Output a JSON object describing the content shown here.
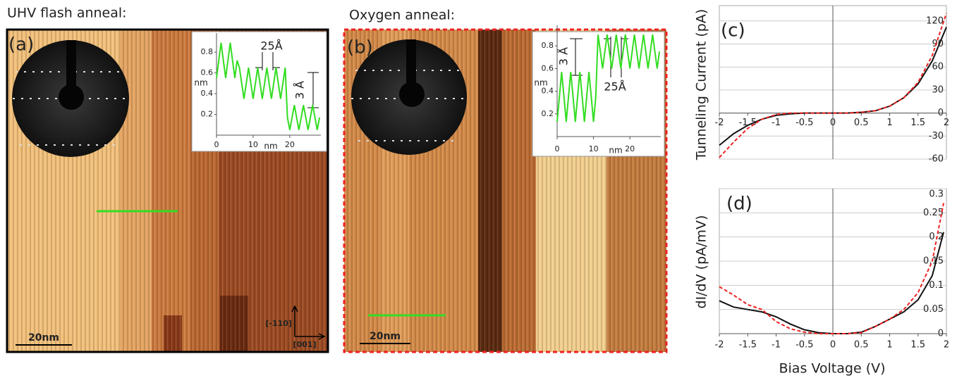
{
  "panels": [
    {
      "title": "UHV flash anneal:",
      "label": "(a)",
      "scale_bar": "20nm",
      "directions": [
        "[-110]",
        "[001]"
      ]
    },
    {
      "title": "Oxygen anneal:",
      "label": "(b)",
      "scale_bar": "20nm"
    }
  ],
  "chart_data": [
    {
      "type": "line",
      "xlabel": "nm",
      "ylabel": "nm",
      "annotations": [
        "25Å",
        "3 Å"
      ],
      "color": "#33dd22",
      "xlim": [
        0,
        28.5
      ],
      "ylim": [
        0,
        0.95
      ],
      "xticks": [
        0,
        10,
        20
      ],
      "yticks": [
        0.2,
        0.4,
        0.6,
        0.8
      ],
      "x": [
        0,
        0.625,
        1.25,
        1.875,
        2.5,
        3.125,
        3.75,
        4.375,
        5,
        5.625,
        6.25,
        6.875,
        7.5,
        8.125,
        8.75,
        9.375,
        10,
        10.625,
        11.25,
        11.875,
        12.5,
        13.125,
        13.75,
        14.375,
        15,
        15.625,
        16.25,
        16.875,
        17.5,
        18.125,
        18.75,
        19.375,
        20,
        20.625,
        21.25,
        21.875,
        22.5,
        23.125,
        23.75,
        24.375,
        25,
        25.625,
        26.25,
        26.875,
        27.5,
        28.125
      ],
      "values": [
        0.55,
        0.72,
        0.89,
        0.72,
        0.55,
        0.72,
        0.89,
        0.72,
        0.55,
        0.72,
        0.65,
        0.5,
        0.35,
        0.5,
        0.65,
        0.5,
        0.35,
        0.5,
        0.65,
        0.5,
        0.35,
        0.5,
        0.65,
        0.5,
        0.35,
        0.5,
        0.65,
        0.5,
        0.35,
        0.5,
        0.65,
        0.17,
        0.05,
        0.17,
        0.29,
        0.17,
        0.05,
        0.17,
        0.29,
        0.17,
        0.05,
        0.17,
        0.29,
        0.17,
        0.05,
        0.17
      ]
    },
    {
      "type": "line",
      "xlabel": "nm",
      "ylabel": "nm",
      "annotations": [
        "3 Å",
        "25Å"
      ],
      "color": "#33dd22",
      "xlim": [
        0,
        28.5
      ],
      "ylim": [
        0,
        0.95
      ],
      "xticks": [
        0,
        10,
        20
      ],
      "yticks": [
        0.2,
        0.4,
        0.6,
        0.8
      ],
      "x": [
        0,
        0.625,
        1.25,
        1.875,
        2.5,
        3.125,
        3.75,
        4.375,
        5,
        5.625,
        6.25,
        6.875,
        7.5,
        8.125,
        8.75,
        9.375,
        10,
        10.625,
        11.25,
        11.875,
        12.5,
        13.125,
        13.75,
        14.375,
        15,
        15.625,
        16.25,
        16.875,
        17.5,
        18.125,
        18.75,
        19.375,
        20,
        20.625,
        21.25,
        21.875,
        22.5,
        23.125,
        23.75,
        24.375,
        25,
        25.625,
        26.25,
        26.875,
        27.5,
        28.125
      ],
      "values": [
        0.13,
        0.35,
        0.57,
        0.35,
        0.13,
        0.35,
        0.57,
        0.35,
        0.13,
        0.35,
        0.57,
        0.35,
        0.13,
        0.35,
        0.57,
        0.35,
        0.13,
        0.35,
        0.9,
        0.75,
        0.6,
        0.75,
        0.9,
        0.75,
        0.6,
        0.75,
        0.9,
        0.75,
        0.6,
        0.75,
        0.9,
        0.75,
        0.6,
        0.75,
        0.9,
        0.75,
        0.6,
        0.75,
        0.9,
        0.75,
        0.6,
        0.75,
        0.9,
        0.75,
        0.6,
        0.75
      ]
    },
    {
      "type": "line",
      "label": "(c)",
      "ylabel": "Tunneling Current (pA)",
      "grid": true,
      "xlim": [
        -2,
        2
      ],
      "ylim": [
        -60,
        140
      ],
      "xticks": [
        -2,
        -1.5,
        -1,
        -0.5,
        0,
        0.5,
        1,
        1.5,
        2
      ],
      "yticks": [
        -60,
        -30,
        0,
        30,
        60,
        90,
        120
      ],
      "x": [
        -2,
        -1.75,
        -1.5,
        -1.25,
        -1,
        -0.75,
        -0.5,
        -0.25,
        0,
        0.25,
        0.5,
        0.75,
        1,
        1.25,
        1.5,
        1.75,
        2
      ],
      "series": [
        {
          "color": "#111111",
          "style": "solid",
          "values": [
            -42,
            -27,
            -16,
            -8,
            -3,
            -1,
            0,
            0,
            0,
            0,
            1,
            3,
            9,
            20,
            38,
            68,
            112
          ]
        },
        {
          "color": "#ee2222",
          "style": "dashed",
          "values": [
            -58,
            -38,
            -20,
            -8,
            -2,
            0,
            0,
            0,
            0,
            0,
            1,
            3,
            9,
            20,
            40,
            75,
            130
          ]
        }
      ]
    },
    {
      "type": "line",
      "label": "(d)",
      "ylabel": "dI/dV (pA/mV)",
      "xlabel": "Bias Voltage (V)",
      "grid": true,
      "xlim": [
        -2,
        2
      ],
      "ylim": [
        0,
        0.3
      ],
      "xticks": [
        -2,
        -1.5,
        -1,
        -0.5,
        0,
        0.5,
        1,
        1.5,
        2
      ],
      "yticks": [
        0,
        0.05,
        0.1,
        0.15,
        0.2,
        0.25,
        0.3
      ],
      "x": [
        -2,
        -1.75,
        -1.5,
        -1.25,
        -1,
        -0.75,
        -0.5,
        -0.25,
        0,
        0.25,
        0.5,
        0.75,
        1,
        1.25,
        1.5,
        1.75,
        1.95
      ],
      "series": [
        {
          "color": "#111111",
          "style": "solid",
          "values": [
            0.068,
            0.055,
            0.05,
            0.045,
            0.035,
            0.02,
            0.008,
            0.002,
            0,
            0,
            0.003,
            0.015,
            0.03,
            0.045,
            0.07,
            0.12,
            0.21
          ]
        },
        {
          "color": "#ee2222",
          "style": "dashed",
          "values": [
            0.097,
            0.08,
            0.06,
            0.05,
            0.025,
            0.01,
            0.003,
            0,
            0,
            0,
            0.002,
            0.015,
            0.03,
            0.05,
            0.085,
            0.15,
            0.27
          ]
        }
      ]
    }
  ]
}
